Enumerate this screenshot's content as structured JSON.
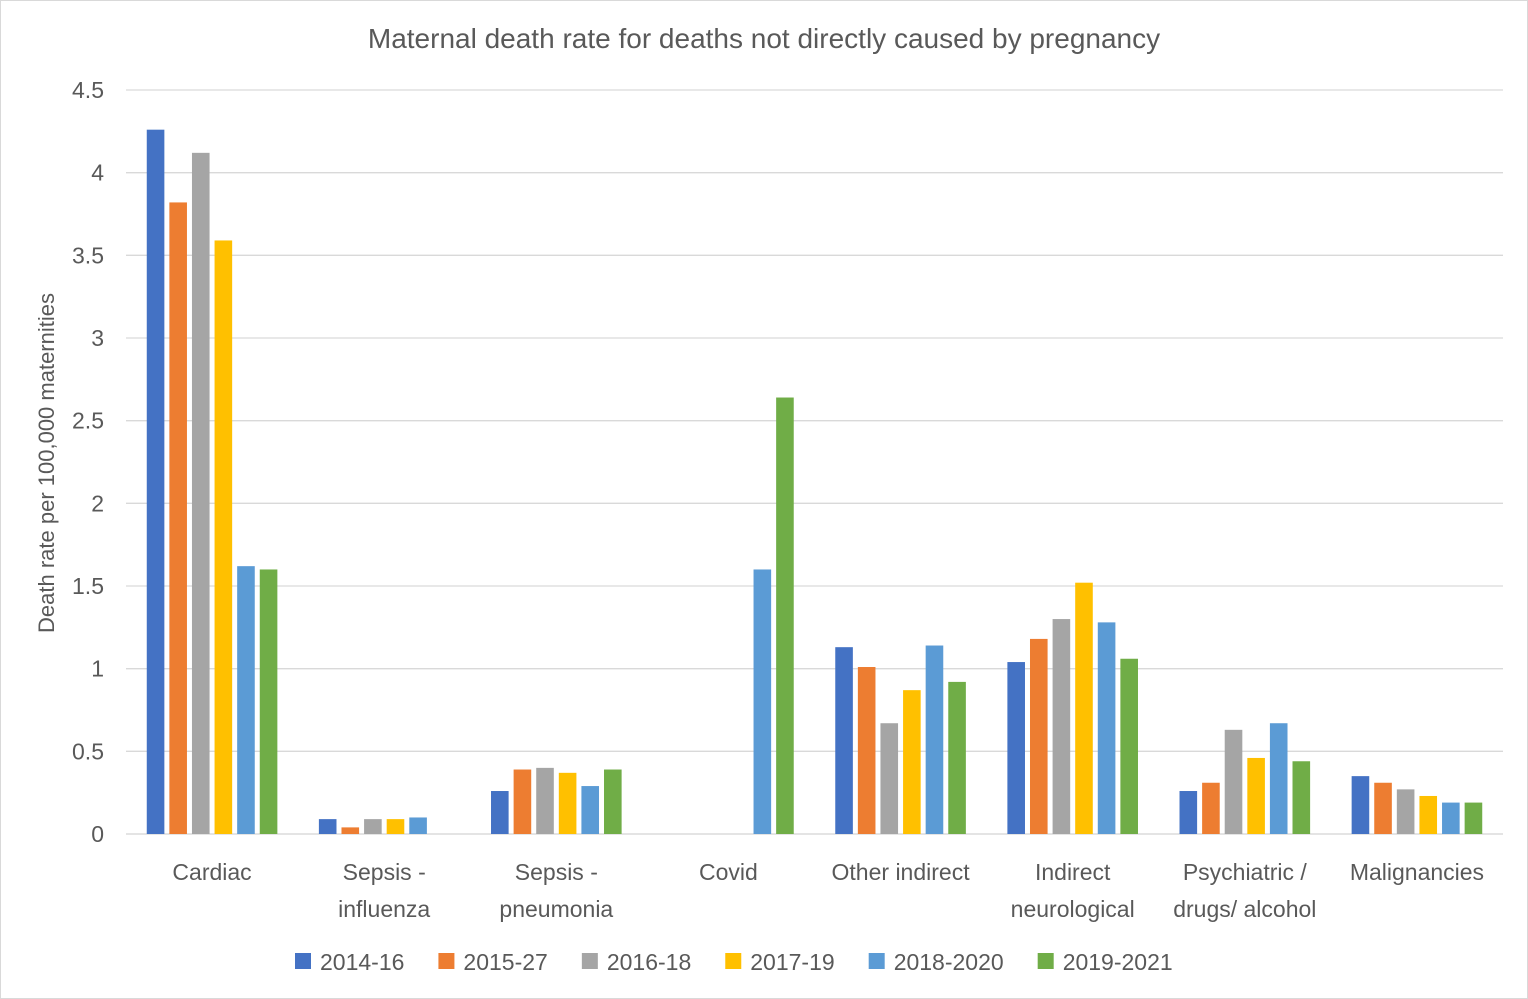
{
  "chart_data": {
    "type": "bar",
    "title": "Maternal death rate for deaths not directly caused by pregnancy",
    "xlabel": "",
    "ylabel": "Death rate per 100,000 maternities",
    "ylim": [
      0,
      4.5
    ],
    "yticks": [
      "0",
      "0.5",
      "1",
      "1.5",
      "2",
      "2.5",
      "3",
      "3.5",
      "4",
      "4.5"
    ],
    "grid": true,
    "legend_position": "bottom",
    "categories": [
      [
        "Cardiac"
      ],
      [
        "Sepsis -",
        "influenza"
      ],
      [
        "Sepsis -",
        "pneumonia"
      ],
      [
        "Covid"
      ],
      [
        "Other indirect"
      ],
      [
        "Indirect",
        "neurological"
      ],
      [
        "Psychiatric /",
        "drugs/ alcohol"
      ],
      [
        "Malignancies"
      ]
    ],
    "series": [
      {
        "name": "2014-16",
        "color": "#4472c4",
        "values": [
          4.26,
          0.09,
          0.26,
          0,
          1.13,
          1.04,
          0.26,
          0.35
        ]
      },
      {
        "name": "2015-27",
        "color": "#ed7d31",
        "values": [
          3.82,
          0.04,
          0.39,
          0,
          1.01,
          1.18,
          0.31,
          0.31
        ]
      },
      {
        "name": "2016-18",
        "color": "#a5a5a5",
        "values": [
          4.12,
          0.09,
          0.4,
          0,
          0.67,
          1.3,
          0.63,
          0.27
        ]
      },
      {
        "name": "2017-19",
        "color": "#ffc000",
        "values": [
          3.59,
          0.09,
          0.37,
          0,
          0.87,
          1.52,
          0.46,
          0.23
        ]
      },
      {
        "name": "2018-2020",
        "color": "#5b9bd5",
        "values": [
          1.62,
          0.1,
          0.29,
          1.6,
          1.14,
          1.28,
          0.67,
          0.19
        ]
      },
      {
        "name": "2019-2021",
        "color": "#70ad47",
        "values": [
          1.6,
          0,
          0.39,
          2.64,
          0.92,
          1.06,
          0.44,
          0.19
        ]
      }
    ]
  },
  "colors": {
    "gridline": "#d9d9d9",
    "text": "#595959"
  }
}
